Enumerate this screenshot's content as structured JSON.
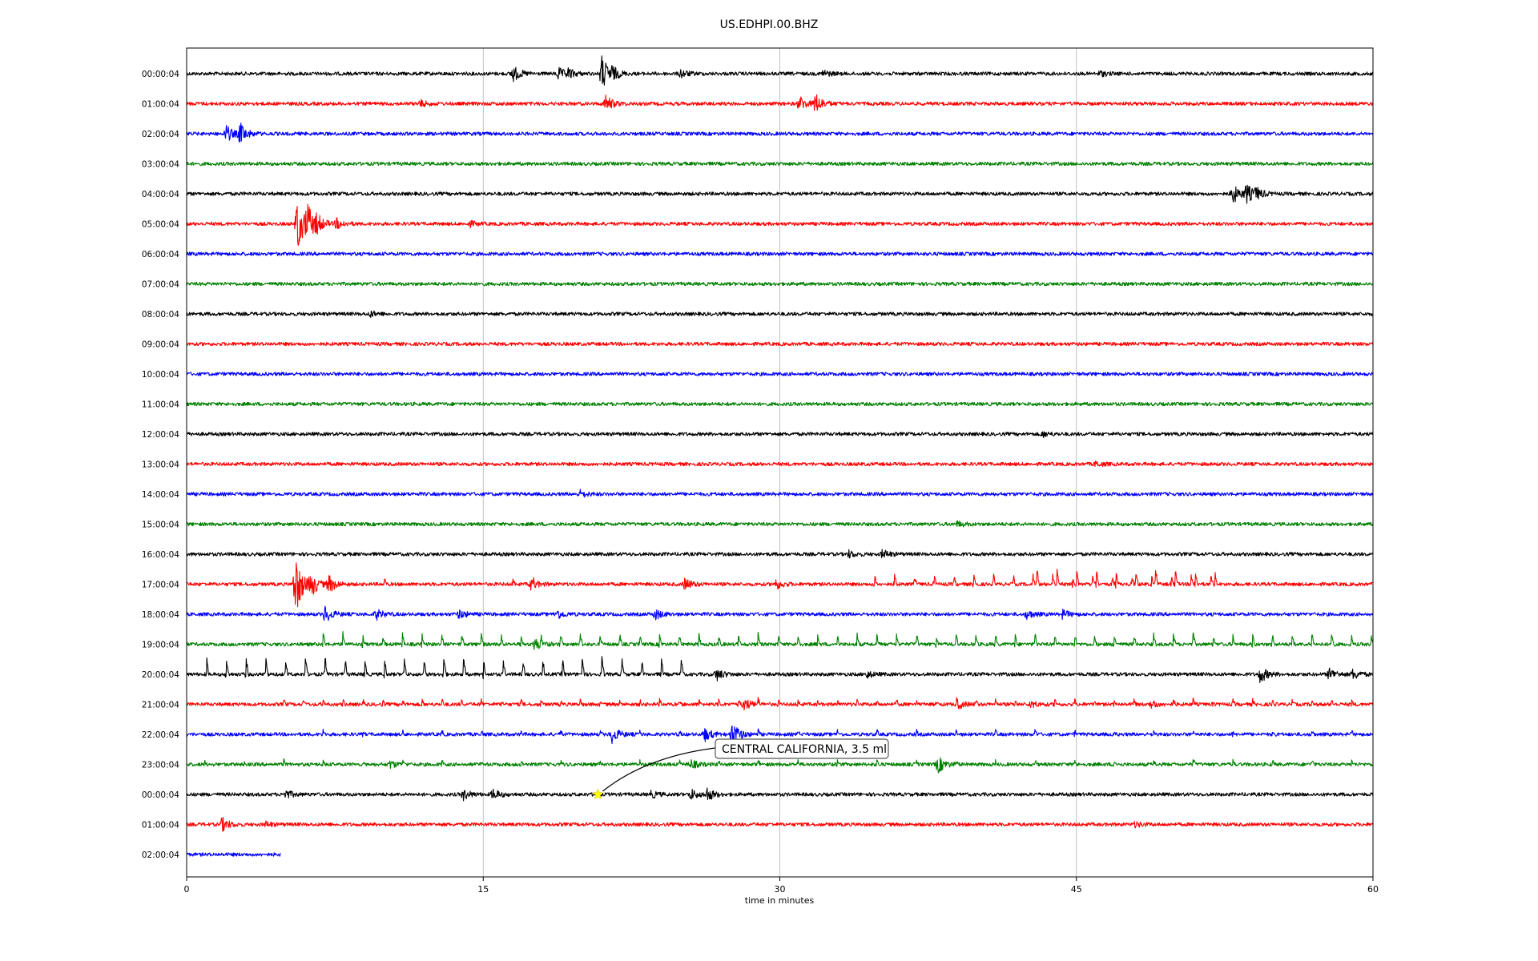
{
  "chart_data": {
    "type": "line",
    "title": "US.EDHPI.00.BHZ",
    "xlabel": "time in minutes",
    "ylabel": "",
    "xlim": [
      0,
      60
    ],
    "x_ticks": [
      0,
      15,
      30,
      45,
      60
    ],
    "x_tick_labels": [
      "0",
      "15",
      "30",
      "45",
      "60"
    ],
    "vertical_grid": true,
    "series_colors": [
      "#000000",
      "#ff0000",
      "#0000ff",
      "#008000"
    ],
    "rows": [
      {
        "label": "00:00:04",
        "color": "#000000",
        "end_minute": 60,
        "events": [
          {
            "t": 16.5,
            "a": 1.0
          },
          {
            "t": 18.8,
            "a": 0.7
          },
          {
            "t": 19.3,
            "a": 0.5
          },
          {
            "t": 21.0,
            "a": 2.2
          },
          {
            "t": 21.5,
            "a": 0.6
          },
          {
            "t": 25.0,
            "a": 0.5
          },
          {
            "t": 32.2,
            "a": 0.4
          },
          {
            "t": 46.2,
            "a": 0.3
          }
        ]
      },
      {
        "label": "01:00:04",
        "color": "#ff0000",
        "end_minute": 60,
        "events": [
          {
            "t": 11.8,
            "a": 0.4
          },
          {
            "t": 21.2,
            "a": 1.0
          },
          {
            "t": 31.0,
            "a": 0.9
          },
          {
            "t": 31.8,
            "a": 1.2
          }
        ]
      },
      {
        "label": "02:00:04",
        "color": "#0000ff",
        "end_minute": 60,
        "events": [
          {
            "t": 2.0,
            "a": 1.0
          },
          {
            "t": 2.7,
            "a": 1.2
          }
        ]
      },
      {
        "label": "03:00:04",
        "color": "#008000",
        "end_minute": 60,
        "events": []
      },
      {
        "label": "04:00:04",
        "color": "#000000",
        "end_minute": 60,
        "events": [
          {
            "t": 52.9,
            "a": 1.2
          },
          {
            "t": 53.6,
            "a": 1.1
          },
          {
            "t": 54.1,
            "a": 0.6
          }
        ]
      },
      {
        "label": "05:00:04",
        "color": "#ff0000",
        "end_minute": 60,
        "events": [
          {
            "t": 5.6,
            "a": 3.5
          },
          {
            "t": 6.1,
            "a": 2.0
          },
          {
            "t": 6.6,
            "a": 0.8
          },
          {
            "t": 7.6,
            "a": 0.6
          },
          {
            "t": 14.3,
            "a": 0.3
          }
        ]
      },
      {
        "label": "06:00:04",
        "color": "#0000ff",
        "end_minute": 60,
        "events": []
      },
      {
        "label": "07:00:04",
        "color": "#008000",
        "end_minute": 60,
        "events": []
      },
      {
        "label": "08:00:04",
        "color": "#000000",
        "end_minute": 60,
        "events": [
          {
            "t": 9.3,
            "a": 0.3
          }
        ]
      },
      {
        "label": "09:00:04",
        "color": "#ff0000",
        "end_minute": 60,
        "events": []
      },
      {
        "label": "10:00:04",
        "color": "#0000ff",
        "end_minute": 60,
        "events": []
      },
      {
        "label": "11:00:04",
        "color": "#008000",
        "end_minute": 60,
        "events": []
      },
      {
        "label": "12:00:04",
        "color": "#000000",
        "end_minute": 60,
        "events": [
          {
            "t": 43.3,
            "a": 0.3
          }
        ]
      },
      {
        "label": "13:00:04",
        "color": "#ff0000",
        "end_minute": 60,
        "events": [
          {
            "t": 46.0,
            "a": 0.3
          }
        ]
      },
      {
        "label": "14:00:04",
        "color": "#0000ff",
        "end_minute": 60,
        "events": [
          {
            "t": 19.9,
            "a": 0.4
          }
        ]
      },
      {
        "label": "15:00:04",
        "color": "#008000",
        "end_minute": 60,
        "events": [
          {
            "t": 39.0,
            "a": 0.3
          }
        ]
      },
      {
        "label": "16:00:04",
        "color": "#000000",
        "end_minute": 60,
        "events": [
          {
            "t": 33.5,
            "a": 0.4
          },
          {
            "t": 35.2,
            "a": 0.5
          }
        ]
      },
      {
        "label": "17:00:04",
        "color": "#ff0000",
        "end_minute": 60,
        "events": [
          {
            "t": 5.5,
            "a": 4.0
          },
          {
            "t": 6.3,
            "a": 1.3
          },
          {
            "t": 7.2,
            "a": 1.0
          },
          {
            "t": 17.4,
            "a": 0.6
          },
          {
            "t": 25.2,
            "a": 0.7
          },
          {
            "t": 29.8,
            "a": 0.6
          }
        ]
      },
      {
        "label": "18:00:04",
        "color": "#0000ff",
        "end_minute": 60,
        "events": [
          {
            "t": 7.0,
            "a": 1.0
          },
          {
            "t": 9.6,
            "a": 0.6
          },
          {
            "t": 13.8,
            "a": 0.5
          },
          {
            "t": 18.7,
            "a": 0.6
          },
          {
            "t": 23.7,
            "a": 0.6
          },
          {
            "t": 42.5,
            "a": 0.5
          },
          {
            "t": 44.3,
            "a": 0.5
          }
        ]
      },
      {
        "label": "19:00:04",
        "color": "#008000",
        "end_minute": 60,
        "events": [
          {
            "t": 17.6,
            "a": 0.7
          }
        ]
      },
      {
        "label": "20:00:04",
        "color": "#000000",
        "end_minute": 60,
        "events": [
          {
            "t": 26.8,
            "a": 0.7
          },
          {
            "t": 34.4,
            "a": 0.4
          },
          {
            "t": 54.3,
            "a": 1.0
          },
          {
            "t": 57.8,
            "a": 0.7
          },
          {
            "t": 59.0,
            "a": 0.6
          }
        ]
      },
      {
        "label": "21:00:04",
        "color": "#ff0000",
        "end_minute": 60,
        "events": [
          {
            "t": 28.2,
            "a": 0.7
          },
          {
            "t": 39.0,
            "a": 0.5
          },
          {
            "t": 42.7,
            "a": 0.4
          },
          {
            "t": 48.8,
            "a": 0.4
          }
        ]
      },
      {
        "label": "22:00:04",
        "color": "#0000ff",
        "end_minute": 60,
        "events": [
          {
            "t": 21.5,
            "a": 1.0
          },
          {
            "t": 26.2,
            "a": 0.8
          },
          {
            "t": 27.6,
            "a": 1.6
          }
        ]
      },
      {
        "label": "23:00:04",
        "color": "#008000",
        "end_minute": 60,
        "events": [
          {
            "t": 10.3,
            "a": 0.4
          },
          {
            "t": 25.5,
            "a": 0.5
          },
          {
            "t": 38.0,
            "a": 1.0
          }
        ]
      },
      {
        "label": "00:00:04",
        "color": "#000000",
        "end_minute": 60,
        "events": [
          {
            "t": 5.0,
            "a": 0.5
          },
          {
            "t": 14.0,
            "a": 0.6
          },
          {
            "t": 15.5,
            "a": 0.6
          },
          {
            "t": 23.5,
            "a": 0.4
          },
          {
            "t": 25.5,
            "a": 0.6
          },
          {
            "t": 26.3,
            "a": 0.8
          }
        ]
      },
      {
        "label": "01:00:04",
        "color": "#ff0000",
        "end_minute": 60,
        "events": [
          {
            "t": 1.8,
            "a": 0.8
          },
          {
            "t": 4.0,
            "a": 0.3
          },
          {
            "t": 48.0,
            "a": 0.3
          }
        ]
      },
      {
        "label": "02:00:04",
        "color": "#0000ff",
        "end_minute": 4.75,
        "events": []
      }
    ],
    "spike_trains": [
      {
        "row": 17,
        "start": 34.8,
        "end": 52.0,
        "interval": 1.0,
        "amp": 0.7
      },
      {
        "row": 17,
        "start": 16.5,
        "end": 18.0,
        "interval": 1.0,
        "amp": 0.5
      },
      {
        "row": 17,
        "start": 10.0,
        "end": 10.0,
        "interval": 1.0,
        "amp": 0.4
      },
      {
        "row": 17,
        "start": 43.0,
        "end": 52.0,
        "interval": 1.0,
        "amp": 1.2
      },
      {
        "row": 19,
        "start": 6.9,
        "end": 60.0,
        "interval": 1.0,
        "amp": 0.8
      },
      {
        "row": 20,
        "start": 1.0,
        "end": 25.0,
        "interval": 1.0,
        "amp": 1.3
      },
      {
        "row": 21,
        "start": 4.9,
        "end": 59.0,
        "interval": 1.0,
        "amp": 0.35
      },
      {
        "row": 22,
        "start": 6.9,
        "end": 59.0,
        "interval": 2.0,
        "amp": 0.3
      },
      {
        "row": 23,
        "start": 0.9,
        "end": 59.0,
        "interval": 2.0,
        "amp": 0.3
      }
    ],
    "annotation": {
      "text": "CENTRAL CALIFORNIA, 3.5 ml",
      "row": 24,
      "t": 20.8,
      "marker_color": "#ffff00"
    }
  }
}
